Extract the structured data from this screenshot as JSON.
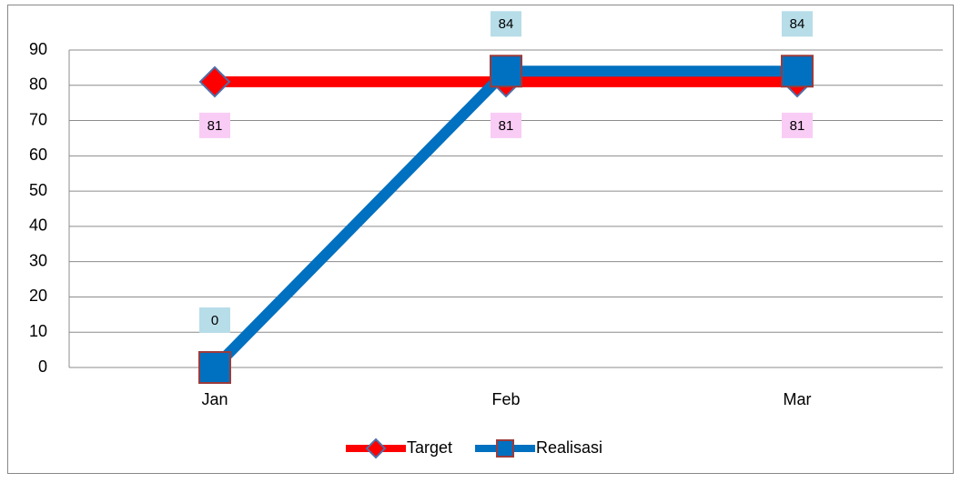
{
  "chart_data": {
    "type": "line",
    "categories": [
      "Jan",
      "Feb",
      "Mar"
    ],
    "series": [
      {
        "name": "Target",
        "color": "#ff0000",
        "marker": "diamond",
        "values": [
          81,
          81,
          81
        ]
      },
      {
        "name": "Realisasi",
        "color": "#0070c0",
        "marker": "square",
        "values": [
          0,
          84,
          84
        ]
      }
    ],
    "ylim": [
      0,
      90
    ],
    "yticks": [
      0,
      10,
      20,
      30,
      40,
      50,
      60,
      70,
      80,
      90
    ],
    "grid": true,
    "legend": "bottom"
  }
}
